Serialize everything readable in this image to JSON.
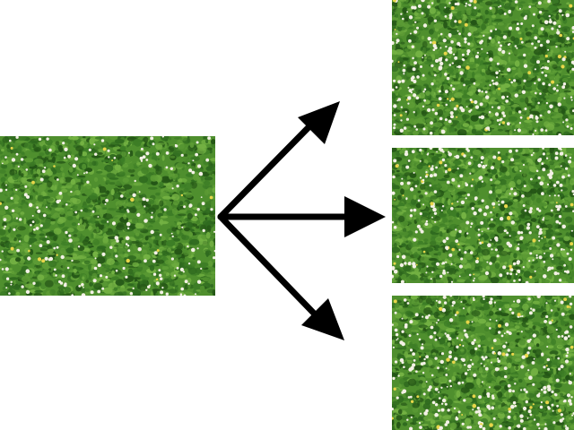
{
  "diagram": {
    "description_kind": "texture synthesis: one source texture produces three generated variations",
    "source": {
      "label": "",
      "texture": "grass-with-daisies"
    },
    "outputs": [
      {
        "label": "",
        "texture": "grass-with-daisies-synthesized"
      },
      {
        "label": "",
        "texture": "grass-with-daisies-synthesized"
      },
      {
        "label": "",
        "texture": "grass-with-daisies-synthesized"
      }
    ],
    "arrows": [
      {
        "from": "source",
        "to": "output-1",
        "icon": "arrow-up-right-icon"
      },
      {
        "from": "source",
        "to": "output-2",
        "icon": "arrow-right-icon"
      },
      {
        "from": "source",
        "to": "output-3",
        "icon": "arrow-down-right-icon"
      }
    ],
    "colors": {
      "grass_dark": "#2f6a1f",
      "grass_mid": "#4f8f2e",
      "grass_light": "#74b243",
      "daisy": "#f4f1e6",
      "arrow": "#000000",
      "background": "#ffffff"
    }
  }
}
